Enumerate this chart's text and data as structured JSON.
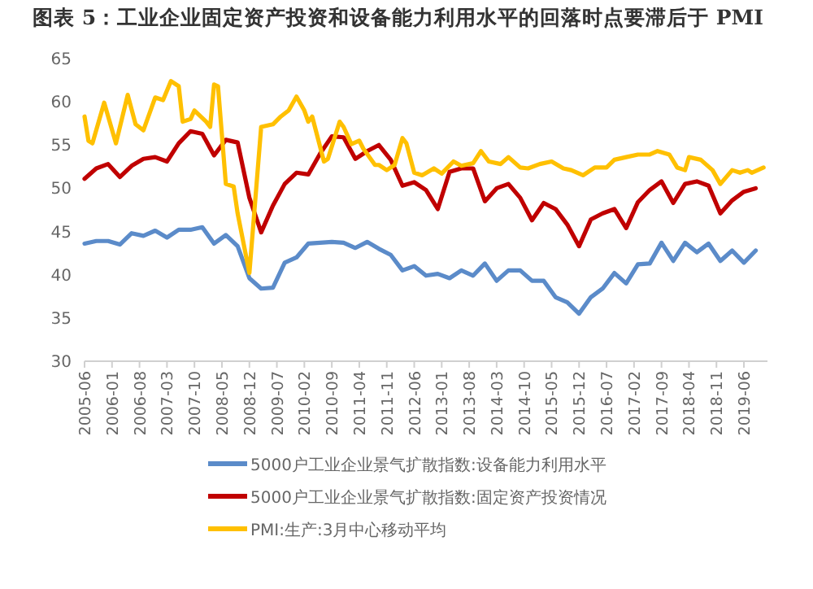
{
  "chart_data": {
    "type": "line",
    "title": "图表 5：工业企业固定资产投资和设备能力利用水平的回落时点要滞后于 PMI",
    "xlim": [
      "2005-06",
      "2019-12"
    ],
    "ylim": [
      30,
      65
    ],
    "yticks": [
      30,
      35,
      40,
      45,
      50,
      55,
      60,
      65
    ],
    "xticks": [
      "2005-06",
      "2006-01",
      "2006-08",
      "2007-03",
      "2007-10",
      "2008-05",
      "2008-12",
      "2009-07",
      "2010-02",
      "2010-09",
      "2011-04",
      "2011-11",
      "2012-06",
      "2013-01",
      "2013-08",
      "2014-03",
      "2014-10",
      "2015-05",
      "2015-12",
      "2016-07",
      "2017-02",
      "2017-09",
      "2018-04",
      "2018-11",
      "2019-06"
    ],
    "legend": "bottom",
    "grid": false,
    "marker": "none",
    "line_style": "solid",
    "series": [
      {
        "name": "5000户工业企业景气扩散指数:设备能力利用水平",
        "color": "#5b8bc9",
        "x": [
          "2005-06",
          "2005-09",
          "2005-12",
          "2006-03",
          "2006-06",
          "2006-09",
          "2006-12",
          "2007-03",
          "2007-06",
          "2007-09",
          "2007-12",
          "2008-03",
          "2008-06",
          "2008-09",
          "2008-12",
          "2009-03",
          "2009-06",
          "2009-09",
          "2009-12",
          "2010-03",
          "2010-06",
          "2010-09",
          "2010-12",
          "2011-03",
          "2011-06",
          "2011-09",
          "2011-12",
          "2012-03",
          "2012-06",
          "2012-09",
          "2012-12",
          "2013-03",
          "2013-06",
          "2013-09",
          "2013-12",
          "2014-03",
          "2014-06",
          "2014-09",
          "2014-12",
          "2015-03",
          "2015-06",
          "2015-09",
          "2015-12",
          "2016-03",
          "2016-06",
          "2016-09",
          "2016-12",
          "2017-03",
          "2017-06",
          "2017-09",
          "2017-12",
          "2018-03",
          "2018-06",
          "2018-09",
          "2018-12",
          "2019-03",
          "2019-06",
          "2019-09"
        ],
        "values": [
          43.6,
          43.9,
          43.9,
          43.5,
          44.8,
          44.5,
          45.1,
          44.3,
          45.2,
          45.2,
          45.5,
          43.6,
          44.6,
          43.3,
          39.6,
          38.4,
          38.5,
          41.4,
          42.0,
          43.6,
          43.7,
          43.8,
          43.7,
          43.1,
          43.8,
          43.0,
          42.3,
          40.5,
          41.0,
          39.9,
          40.1,
          39.6,
          40.5,
          39.9,
          41.3,
          39.3,
          40.5,
          40.5,
          39.3,
          39.3,
          37.4,
          36.8,
          35.5,
          37.4,
          38.4,
          40.2,
          39.0,
          41.2,
          41.3,
          43.7,
          41.6,
          43.7,
          42.6,
          43.6,
          41.6,
          42.8,
          41.4,
          42.8
        ]
      },
      {
        "name": "5000户工业企业景气扩散指数:固定资产投资情况",
        "color": "#c00000",
        "x": [
          "2005-06",
          "2005-09",
          "2005-12",
          "2006-03",
          "2006-06",
          "2006-09",
          "2006-12",
          "2007-03",
          "2007-06",
          "2007-09",
          "2007-12",
          "2008-03",
          "2008-06",
          "2008-09",
          "2008-12",
          "2009-03",
          "2009-06",
          "2009-09",
          "2009-12",
          "2010-03",
          "2010-06",
          "2010-09",
          "2010-12",
          "2011-03",
          "2011-06",
          "2011-09",
          "2011-12",
          "2012-03",
          "2012-06",
          "2012-09",
          "2012-12",
          "2013-03",
          "2013-06",
          "2013-09",
          "2013-12",
          "2014-03",
          "2014-06",
          "2014-09",
          "2014-12",
          "2015-03",
          "2015-06",
          "2015-09",
          "2015-12",
          "2016-03",
          "2016-06",
          "2016-09",
          "2016-12",
          "2017-03",
          "2017-06",
          "2017-09",
          "2017-12",
          "2018-03",
          "2018-06",
          "2018-09",
          "2018-12",
          "2019-03",
          "2019-06",
          "2019-09"
        ],
        "values": [
          51.1,
          52.3,
          52.8,
          51.3,
          52.6,
          53.4,
          53.6,
          53.1,
          55.2,
          56.6,
          56.3,
          53.8,
          55.6,
          55.3,
          48.9,
          44.9,
          48.0,
          50.5,
          51.8,
          51.6,
          54.0,
          56.0,
          55.9,
          53.4,
          54.3,
          55.0,
          53.3,
          50.3,
          50.7,
          49.8,
          47.6,
          51.9,
          52.3,
          52.3,
          48.5,
          50.0,
          50.5,
          48.9,
          46.3,
          48.3,
          47.6,
          45.8,
          43.3,
          46.4,
          47.1,
          47.6,
          45.4,
          48.4,
          49.8,
          50.8,
          48.3,
          50.5,
          50.8,
          50.3,
          47.1,
          48.6,
          49.6,
          50.0
        ]
      },
      {
        "name": "PMI:生产:3月中心移动平均",
        "color": "#ffc000",
        "x": [
          "2005-06",
          "2005-07",
          "2005-08",
          "2005-11",
          "2006-02",
          "2006-05",
          "2006-07",
          "2006-09",
          "2006-12",
          "2007-02",
          "2007-04",
          "2007-06",
          "2007-07",
          "2007-09",
          "2007-10",
          "2008-01",
          "2008-02",
          "2008-03",
          "2008-04",
          "2008-06",
          "2008-08",
          "2008-09",
          "2008-12",
          "2009-03",
          "2009-06",
          "2009-08",
          "2009-10",
          "2009-12",
          "2010-02",
          "2010-03",
          "2010-04",
          "2010-07",
          "2010-08",
          "2010-11",
          "2010-12",
          "2011-02",
          "2011-04",
          "2011-05",
          "2011-08",
          "2011-09",
          "2011-11",
          "2012-01",
          "2012-03",
          "2012-04",
          "2012-06",
          "2012-08",
          "2012-11",
          "2013-01",
          "2013-04",
          "2013-06",
          "2013-09",
          "2013-11",
          "2014-01",
          "2014-04",
          "2014-06",
          "2014-09",
          "2014-11",
          "2015-02",
          "2015-05",
          "2015-08",
          "2015-10",
          "2016-01",
          "2016-04",
          "2016-07",
          "2016-09",
          "2016-12",
          "2017-03",
          "2017-06",
          "2017-08",
          "2017-11",
          "2018-01",
          "2018-03",
          "2018-04",
          "2018-07",
          "2018-10",
          "2018-12",
          "2019-03",
          "2019-05",
          "2019-07",
          "2019-08",
          "2019-11"
        ],
        "values": [
          58.3,
          55.5,
          55.2,
          59.9,
          55.2,
          60.8,
          57.4,
          56.7,
          60.5,
          60.2,
          62.4,
          61.8,
          57.7,
          58.0,
          59.0,
          57.7,
          57.1,
          62.0,
          61.8,
          50.5,
          50.2,
          47.1,
          40.2,
          57.1,
          57.4,
          58.3,
          59.0,
          60.6,
          59.0,
          57.7,
          58.3,
          53.1,
          53.4,
          57.7,
          57.1,
          55.1,
          55.5,
          54.6,
          52.7,
          52.7,
          52.1,
          52.7,
          55.8,
          55.2,
          51.8,
          51.5,
          52.3,
          51.7,
          53.1,
          52.6,
          52.9,
          54.3,
          53.1,
          52.8,
          53.6,
          52.4,
          52.3,
          52.8,
          53.1,
          52.3,
          52.1,
          51.5,
          52.4,
          52.4,
          53.3,
          53.6,
          53.9,
          53.9,
          54.3,
          53.9,
          52.4,
          52.1,
          53.6,
          53.3,
          52.1,
          50.5,
          52.1,
          51.8,
          52.1,
          51.8,
          52.4
        ]
      }
    ]
  }
}
